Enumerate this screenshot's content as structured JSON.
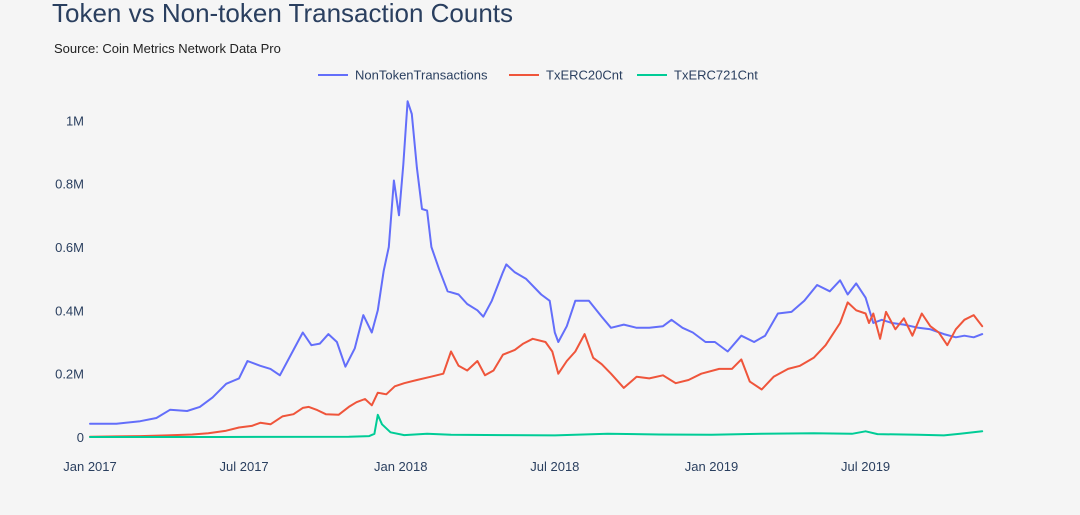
{
  "chart_data": {
    "type": "line",
    "title": "Token vs Non-token Transaction Counts",
    "subtitle": "Source: Coin Metrics Network Data Pro",
    "xlabel": "",
    "ylabel": "",
    "legend_position": "top-center",
    "grid": false,
    "x_type": "date",
    "xlim": [
      "2017-01-01",
      "2019-11-30"
    ],
    "ylim": [
      0,
      1080000
    ],
    "y_ticks": [
      {
        "value": 0,
        "label": "0"
      },
      {
        "value": 200000,
        "label": "0.2M"
      },
      {
        "value": 400000,
        "label": "0.4M"
      },
      {
        "value": 600000,
        "label": "0.6M"
      },
      {
        "value": 800000,
        "label": "0.8M"
      },
      {
        "value": 1000000,
        "label": "1M"
      }
    ],
    "x_ticks": [
      {
        "value": "2017-01-01",
        "label": "Jan 2017"
      },
      {
        "value": "2017-07-01",
        "label": "Jul 2017"
      },
      {
        "value": "2018-01-01",
        "label": "Jan 2018"
      },
      {
        "value": "2018-07-01",
        "label": "Jul 2018"
      },
      {
        "value": "2019-01-01",
        "label": "Jan 2019"
      },
      {
        "value": "2019-07-01",
        "label": "Jul 2019"
      }
    ],
    "series": [
      {
        "name": "NonTokenTransactions",
        "color": "#636efa",
        "points": [
          [
            "2017-01-01",
            42000
          ],
          [
            "2017-02-01",
            42000
          ],
          [
            "2017-03-01",
            50000
          ],
          [
            "2017-03-20",
            60000
          ],
          [
            "2017-04-05",
            86000
          ],
          [
            "2017-04-25",
            82000
          ],
          [
            "2017-05-10",
            95000
          ],
          [
            "2017-05-25",
            125000
          ],
          [
            "2017-06-10",
            168000
          ],
          [
            "2017-06-25",
            185000
          ],
          [
            "2017-07-05",
            240000
          ],
          [
            "2017-07-20",
            225000
          ],
          [
            "2017-08-01",
            215000
          ],
          [
            "2017-08-12",
            195000
          ],
          [
            "2017-08-28",
            275000
          ],
          [
            "2017-09-08",
            330000
          ],
          [
            "2017-09-18",
            290000
          ],
          [
            "2017-09-28",
            295000
          ],
          [
            "2017-10-08",
            325000
          ],
          [
            "2017-10-18",
            300000
          ],
          [
            "2017-10-28",
            222000
          ],
          [
            "2017-11-08",
            280000
          ],
          [
            "2017-11-18",
            385000
          ],
          [
            "2017-11-28",
            330000
          ],
          [
            "2017-12-05",
            400000
          ],
          [
            "2017-12-12",
            525000
          ],
          [
            "2017-12-18",
            600000
          ],
          [
            "2017-12-24",
            810000
          ],
          [
            "2017-12-30",
            700000
          ],
          [
            "2018-01-04",
            860000
          ],
          [
            "2018-01-09",
            1060000
          ],
          [
            "2018-01-14",
            1020000
          ],
          [
            "2018-01-20",
            850000
          ],
          [
            "2018-01-26",
            720000
          ],
          [
            "2018-02-01",
            715000
          ],
          [
            "2018-02-06",
            600000
          ],
          [
            "2018-02-15",
            530000
          ],
          [
            "2018-02-25",
            460000
          ],
          [
            "2018-03-10",
            450000
          ],
          [
            "2018-03-20",
            420000
          ],
          [
            "2018-04-01",
            400000
          ],
          [
            "2018-04-08",
            380000
          ],
          [
            "2018-04-18",
            430000
          ],
          [
            "2018-05-01",
            520000
          ],
          [
            "2018-05-05",
            545000
          ],
          [
            "2018-05-15",
            520000
          ],
          [
            "2018-05-28",
            500000
          ],
          [
            "2018-06-15",
            450000
          ],
          [
            "2018-06-25",
            430000
          ],
          [
            "2018-07-01",
            330000
          ],
          [
            "2018-07-05",
            300000
          ],
          [
            "2018-07-15",
            350000
          ],
          [
            "2018-07-25",
            430000
          ],
          [
            "2018-08-10",
            430000
          ],
          [
            "2018-08-25",
            380000
          ],
          [
            "2018-09-05",
            345000
          ],
          [
            "2018-09-20",
            355000
          ],
          [
            "2018-10-05",
            345000
          ],
          [
            "2018-10-20",
            345000
          ],
          [
            "2018-11-05",
            350000
          ],
          [
            "2018-11-15",
            370000
          ],
          [
            "2018-11-28",
            345000
          ],
          [
            "2018-12-10",
            330000
          ],
          [
            "2018-12-25",
            300000
          ],
          [
            "2019-01-05",
            300000
          ],
          [
            "2019-01-20",
            270000
          ],
          [
            "2019-02-05",
            320000
          ],
          [
            "2019-02-20",
            300000
          ],
          [
            "2019-03-05",
            320000
          ],
          [
            "2019-03-20",
            390000
          ],
          [
            "2019-04-05",
            395000
          ],
          [
            "2019-04-20",
            430000
          ],
          [
            "2019-05-05",
            480000
          ],
          [
            "2019-05-20",
            460000
          ],
          [
            "2019-06-01",
            495000
          ],
          [
            "2019-06-10",
            450000
          ],
          [
            "2019-06-20",
            485000
          ],
          [
            "2019-07-01",
            440000
          ],
          [
            "2019-07-10",
            360000
          ],
          [
            "2019-07-20",
            370000
          ],
          [
            "2019-08-01",
            360000
          ],
          [
            "2019-08-15",
            355000
          ],
          [
            "2019-09-01",
            345000
          ],
          [
            "2019-09-15",
            340000
          ],
          [
            "2019-10-01",
            325000
          ],
          [
            "2019-10-15",
            315000
          ],
          [
            "2019-10-25",
            320000
          ],
          [
            "2019-11-05",
            315000
          ],
          [
            "2019-11-15",
            325000
          ]
        ]
      },
      {
        "name": "TxERC20Cnt",
        "color": "#ef553b",
        "points": [
          [
            "2017-01-01",
            1000
          ],
          [
            "2017-02-01",
            2000
          ],
          [
            "2017-03-01",
            3000
          ],
          [
            "2017-04-01",
            5000
          ],
          [
            "2017-05-01",
            8000
          ],
          [
            "2017-05-20",
            12000
          ],
          [
            "2017-06-10",
            20000
          ],
          [
            "2017-06-25",
            30000
          ],
          [
            "2017-07-10",
            35000
          ],
          [
            "2017-07-20",
            45000
          ],
          [
            "2017-08-01",
            40000
          ],
          [
            "2017-08-15",
            65000
          ],
          [
            "2017-08-28",
            72000
          ],
          [
            "2017-09-08",
            92000
          ],
          [
            "2017-09-15",
            95000
          ],
          [
            "2017-09-25",
            85000
          ],
          [
            "2017-10-05",
            72000
          ],
          [
            "2017-10-20",
            70000
          ],
          [
            "2017-11-01",
            95000
          ],
          [
            "2017-11-10",
            110000
          ],
          [
            "2017-11-20",
            120000
          ],
          [
            "2017-11-28",
            100000
          ],
          [
            "2017-12-05",
            140000
          ],
          [
            "2017-12-15",
            135000
          ],
          [
            "2017-12-25",
            160000
          ],
          [
            "2018-01-05",
            170000
          ],
          [
            "2018-01-20",
            180000
          ],
          [
            "2018-02-05",
            190000
          ],
          [
            "2018-02-20",
            200000
          ],
          [
            "2018-03-01",
            270000
          ],
          [
            "2018-03-10",
            225000
          ],
          [
            "2018-03-20",
            210000
          ],
          [
            "2018-04-01",
            240000
          ],
          [
            "2018-04-10",
            195000
          ],
          [
            "2018-04-20",
            210000
          ],
          [
            "2018-05-01",
            260000
          ],
          [
            "2018-05-15",
            275000
          ],
          [
            "2018-05-25",
            295000
          ],
          [
            "2018-06-05",
            310000
          ],
          [
            "2018-06-20",
            300000
          ],
          [
            "2018-06-28",
            270000
          ],
          [
            "2018-07-05",
            200000
          ],
          [
            "2018-07-15",
            240000
          ],
          [
            "2018-07-25",
            270000
          ],
          [
            "2018-08-05",
            325000
          ],
          [
            "2018-08-15",
            250000
          ],
          [
            "2018-08-25",
            230000
          ],
          [
            "2018-09-05",
            200000
          ],
          [
            "2018-09-20",
            155000
          ],
          [
            "2018-10-05",
            190000
          ],
          [
            "2018-10-20",
            185000
          ],
          [
            "2018-11-05",
            195000
          ],
          [
            "2018-11-20",
            170000
          ],
          [
            "2018-12-05",
            180000
          ],
          [
            "2018-12-20",
            200000
          ],
          [
            "2019-01-10",
            215000
          ],
          [
            "2019-01-25",
            215000
          ],
          [
            "2019-02-05",
            245000
          ],
          [
            "2019-02-15",
            175000
          ],
          [
            "2019-03-01",
            150000
          ],
          [
            "2019-03-15",
            190000
          ],
          [
            "2019-04-01",
            215000
          ],
          [
            "2019-04-15",
            225000
          ],
          [
            "2019-05-01",
            250000
          ],
          [
            "2019-05-15",
            290000
          ],
          [
            "2019-06-01",
            360000
          ],
          [
            "2019-06-10",
            425000
          ],
          [
            "2019-06-20",
            400000
          ],
          [
            "2019-07-01",
            390000
          ],
          [
            "2019-07-05",
            360000
          ],
          [
            "2019-07-10",
            390000
          ],
          [
            "2019-07-18",
            310000
          ],
          [
            "2019-07-25",
            395000
          ],
          [
            "2019-08-05",
            340000
          ],
          [
            "2019-08-15",
            375000
          ],
          [
            "2019-08-25",
            320000
          ],
          [
            "2019-09-05",
            390000
          ],
          [
            "2019-09-15",
            350000
          ],
          [
            "2019-09-25",
            330000
          ],
          [
            "2019-10-05",
            290000
          ],
          [
            "2019-10-15",
            340000
          ],
          [
            "2019-10-25",
            370000
          ],
          [
            "2019-11-05",
            385000
          ],
          [
            "2019-11-15",
            350000
          ]
        ]
      },
      {
        "name": "TxERC721Cnt",
        "color": "#00cc96",
        "points": [
          [
            "2017-01-01",
            0
          ],
          [
            "2017-06-01",
            0
          ],
          [
            "2017-11-01",
            1000
          ],
          [
            "2017-11-25",
            3000
          ],
          [
            "2017-12-01",
            10000
          ],
          [
            "2017-12-05",
            70000
          ],
          [
            "2017-12-10",
            40000
          ],
          [
            "2017-12-20",
            15000
          ],
          [
            "2018-01-05",
            6000
          ],
          [
            "2018-02-01",
            10000
          ],
          [
            "2018-03-01",
            7000
          ],
          [
            "2018-05-01",
            6000
          ],
          [
            "2018-07-01",
            5000
          ],
          [
            "2018-09-01",
            10000
          ],
          [
            "2018-11-01",
            8000
          ],
          [
            "2019-01-01",
            7000
          ],
          [
            "2019-03-01",
            10000
          ],
          [
            "2019-05-01",
            12000
          ],
          [
            "2019-06-15",
            10000
          ],
          [
            "2019-07-01",
            18000
          ],
          [
            "2019-07-15",
            9000
          ],
          [
            "2019-09-01",
            7000
          ],
          [
            "2019-10-01",
            5000
          ],
          [
            "2019-10-20",
            10000
          ],
          [
            "2019-11-15",
            18000
          ]
        ]
      }
    ]
  }
}
